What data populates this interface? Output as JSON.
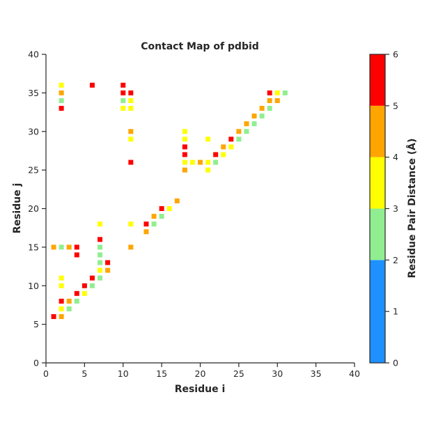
{
  "chart_data": {
    "type": "scatter",
    "title": "Contact Map of pdbid",
    "xlabel": "Residue i",
    "ylabel": "Residue j",
    "xlim": [
      0,
      40
    ],
    "ylim": [
      0,
      40
    ],
    "xticks": [
      0,
      5,
      10,
      15,
      20,
      25,
      30,
      35,
      40
    ],
    "yticks": [
      0,
      5,
      10,
      15,
      20,
      25,
      30,
      35,
      40
    ],
    "grid": false,
    "colorbar": {
      "label": "Residue Pair Distance ($\\AA$)",
      "label_display": "Residue Pair Distance (Å)",
      "range": [
        0,
        6
      ],
      "ticks": [
        0,
        1,
        2,
        3,
        4,
        5,
        6
      ],
      "bins": [
        {
          "from": 0,
          "to": 2,
          "color": "#1e90ff"
        },
        {
          "from": 2,
          "to": 3,
          "color": "#90ee90"
        },
        {
          "from": 3,
          "to": 4,
          "color": "#ffff00"
        },
        {
          "from": 4,
          "to": 5,
          "color": "#ffa500"
        },
        {
          "from": 5,
          "to": 6,
          "color": "#ff0000"
        }
      ]
    },
    "points": [
      {
        "i": 1,
        "j": 6,
        "color": "#ff0000"
      },
      {
        "i": 2,
        "j": 6,
        "color": "#ffa500"
      },
      {
        "i": 2,
        "j": 7,
        "color": "#ffff00"
      },
      {
        "i": 2,
        "j": 8,
        "color": "#ff0000"
      },
      {
        "i": 3,
        "j": 7,
        "color": "#90ee90"
      },
      {
        "i": 3,
        "j": 8,
        "color": "#ffa500"
      },
      {
        "i": 4,
        "j": 8,
        "color": "#90ee90"
      },
      {
        "i": 4,
        "j": 9,
        "color": "#ff0000"
      },
      {
        "i": 5,
        "j": 9,
        "color": "#ffff00"
      },
      {
        "i": 5,
        "j": 10,
        "color": "#ff0000"
      },
      {
        "i": 6,
        "j": 10,
        "color": "#90ee90"
      },
      {
        "i": 6,
        "j": 11,
        "color": "#ff0000"
      },
      {
        "i": 2,
        "j": 10,
        "color": "#ffff00"
      },
      {
        "i": 2,
        "j": 11,
        "color": "#ffff00"
      },
      {
        "i": 7,
        "j": 11,
        "color": "#90ee90"
      },
      {
        "i": 7,
        "j": 12,
        "color": "#ffff00"
      },
      {
        "i": 8,
        "j": 12,
        "color": "#ffa500"
      },
      {
        "i": 7,
        "j": 13,
        "color": "#90ee90"
      },
      {
        "i": 8,
        "j": 13,
        "color": "#ff0000"
      },
      {
        "i": 7,
        "j": 14,
        "color": "#90ee90"
      },
      {
        "i": 4,
        "j": 14,
        "color": "#ff0000"
      },
      {
        "i": 1,
        "j": 15,
        "color": "#ffa500"
      },
      {
        "i": 2,
        "j": 15,
        "color": "#90ee90"
      },
      {
        "i": 3,
        "j": 15,
        "color": "#ffa500"
      },
      {
        "i": 4,
        "j": 15,
        "color": "#ff0000"
      },
      {
        "i": 7,
        "j": 15,
        "color": "#90ee90"
      },
      {
        "i": 7,
        "j": 16,
        "color": "#ff0000"
      },
      {
        "i": 7,
        "j": 18,
        "color": "#ffff00"
      },
      {
        "i": 11,
        "j": 15,
        "color": "#ffa500"
      },
      {
        "i": 11,
        "j": 18,
        "color": "#ffff00"
      },
      {
        "i": 13,
        "j": 17,
        "color": "#ffa500"
      },
      {
        "i": 13,
        "j": 18,
        "color": "#ff0000"
      },
      {
        "i": 14,
        "j": 18,
        "color": "#90ee90"
      },
      {
        "i": 14,
        "j": 19,
        "color": "#ffa500"
      },
      {
        "i": 15,
        "j": 19,
        "color": "#90ee90"
      },
      {
        "i": 15,
        "j": 20,
        "color": "#ff0000"
      },
      {
        "i": 16,
        "j": 20,
        "color": "#ffff00"
      },
      {
        "i": 17,
        "j": 21,
        "color": "#ffa500"
      },
      {
        "i": 18,
        "j": 25,
        "color": "#ffa500"
      },
      {
        "i": 18,
        "j": 26,
        "color": "#ffff00"
      },
      {
        "i": 18,
        "j": 27,
        "color": "#ff0000"
      },
      {
        "i": 18,
        "j": 28,
        "color": "#ff0000"
      },
      {
        "i": 18,
        "j": 29,
        "color": "#ffff00"
      },
      {
        "i": 18,
        "j": 30,
        "color": "#ffff00"
      },
      {
        "i": 19,
        "j": 26,
        "color": "#ffff00"
      },
      {
        "i": 20,
        "j": 26,
        "color": "#ffa500"
      },
      {
        "i": 21,
        "j": 25,
        "color": "#ffff00"
      },
      {
        "i": 21,
        "j": 26,
        "color": "#ffff00"
      },
      {
        "i": 21,
        "j": 29,
        "color": "#ffff00"
      },
      {
        "i": 22,
        "j": 26,
        "color": "#90ee90"
      },
      {
        "i": 22,
        "j": 27,
        "color": "#ff0000"
      },
      {
        "i": 23,
        "j": 27,
        "color": "#ffff00"
      },
      {
        "i": 23,
        "j": 28,
        "color": "#ffa500"
      },
      {
        "i": 24,
        "j": 28,
        "color": "#ffff00"
      },
      {
        "i": 24,
        "j": 29,
        "color": "#ff0000"
      },
      {
        "i": 25,
        "j": 29,
        "color": "#90ee90"
      },
      {
        "i": 25,
        "j": 30,
        "color": "#ffa500"
      },
      {
        "i": 26,
        "j": 30,
        "color": "#90ee90"
      },
      {
        "i": 26,
        "j": 31,
        "color": "#ffa500"
      },
      {
        "i": 27,
        "j": 31,
        "color": "#90ee90"
      },
      {
        "i": 27,
        "j": 32,
        "color": "#ffa500"
      },
      {
        "i": 28,
        "j": 32,
        "color": "#90ee90"
      },
      {
        "i": 28,
        "j": 33,
        "color": "#ffa500"
      },
      {
        "i": 29,
        "j": 33,
        "color": "#90ee90"
      },
      {
        "i": 29,
        "j": 34,
        "color": "#ffa500"
      },
      {
        "i": 30,
        "j": 34,
        "color": "#ffa500"
      },
      {
        "i": 29,
        "j": 35,
        "color": "#ff0000"
      },
      {
        "i": 30,
        "j": 35,
        "color": "#ffff00"
      },
      {
        "i": 31,
        "j": 35,
        "color": "#90ee90"
      },
      {
        "i": 11,
        "j": 26,
        "color": "#ff0000"
      },
      {
        "i": 11,
        "j": 29,
        "color": "#ffff00"
      },
      {
        "i": 11,
        "j": 30,
        "color": "#ffa500"
      },
      {
        "i": 10,
        "j": 33,
        "color": "#ffff00"
      },
      {
        "i": 11,
        "j": 33,
        "color": "#ffff00"
      },
      {
        "i": 10,
        "j": 34,
        "color": "#90ee90"
      },
      {
        "i": 11,
        "j": 34,
        "color": "#ffff00"
      },
      {
        "i": 10,
        "j": 35,
        "color": "#ff0000"
      },
      {
        "i": 11,
        "j": 35,
        "color": "#ff0000"
      },
      {
        "i": 10,
        "j": 36,
        "color": "#ff0000"
      },
      {
        "i": 6,
        "j": 36,
        "color": "#ff0000"
      },
      {
        "i": 2,
        "j": 33,
        "color": "#ff0000"
      },
      {
        "i": 2,
        "j": 34,
        "color": "#90ee90"
      },
      {
        "i": 2,
        "j": 35,
        "color": "#ffa500"
      },
      {
        "i": 2,
        "j": 36,
        "color": "#ffff00"
      }
    ]
  }
}
